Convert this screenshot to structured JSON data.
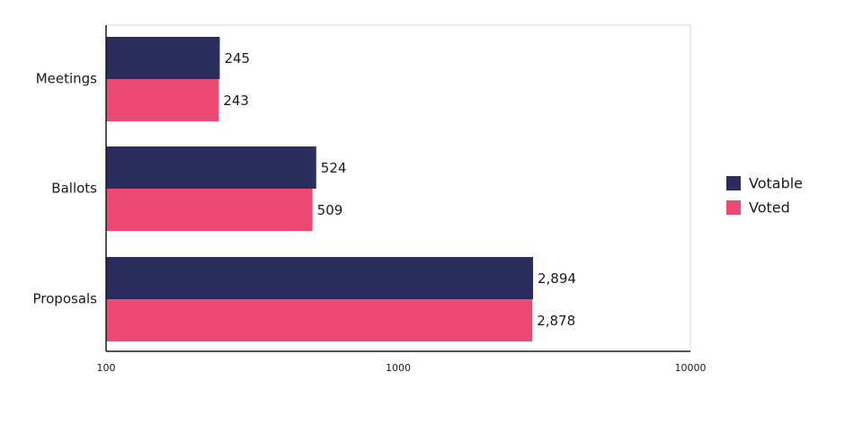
{
  "chart_data": {
    "type": "bar",
    "orientation": "horizontal",
    "x_scale": "log",
    "xlim": [
      100,
      10000
    ],
    "x_ticks": [
      {
        "value": 100,
        "label": "100"
      },
      {
        "value": 1000,
        "label": "1000"
      },
      {
        "value": 10000,
        "label": "10000"
      }
    ],
    "grid": false,
    "legend_position": "right",
    "categories": [
      "Meetings",
      "Ballots",
      "Proposals"
    ],
    "series": [
      {
        "name": "Votable",
        "color": "#2b2d5e",
        "values": [
          245,
          524,
          2894
        ],
        "labels": [
          "245",
          "524",
          "2,894"
        ]
      },
      {
        "name": "Voted",
        "color": "#ec4a72",
        "values": [
          243,
          509,
          2878
        ],
        "labels": [
          "243",
          "509",
          "2,878"
        ]
      }
    ]
  }
}
